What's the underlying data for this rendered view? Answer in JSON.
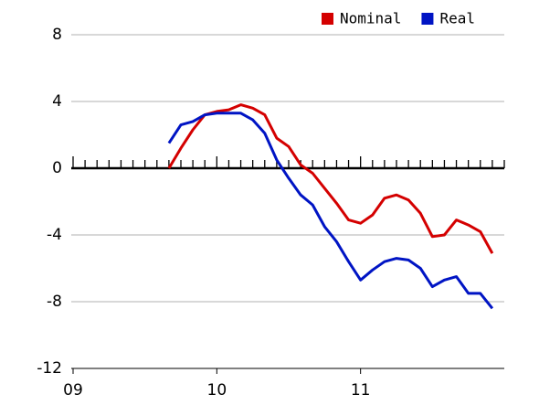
{
  "chart_data": {
    "type": "line",
    "categories": [
      "09",
      null,
      null,
      null,
      null,
      null,
      null,
      null,
      null,
      null,
      null,
      null,
      "10",
      null,
      null,
      null,
      null,
      null,
      null,
      null,
      null,
      null,
      null,
      null,
      "11",
      null,
      null,
      null,
      null,
      null,
      null,
      null,
      null,
      null,
      null,
      null
    ],
    "series": [
      {
        "name": "Nominal",
        "color": "#d40000",
        "values": [
          null,
          null,
          null,
          null,
          null,
          null,
          null,
          null,
          0,
          1.2,
          2.3,
          3.2,
          3.4,
          3.5,
          3.8,
          3.6,
          3.2,
          1.8,
          1.3,
          0.2,
          -0.3,
          -1.2,
          -2.1,
          -3.1,
          -3.3,
          -2.8,
          -1.8,
          -1.6,
          -1.9,
          -2.7,
          -4.1,
          -4.0,
          -3.1,
          -3.4,
          -3.8,
          -5.1
        ]
      },
      {
        "name": "Real",
        "color": "#0014c4",
        "values": [
          null,
          null,
          null,
          null,
          null,
          null,
          null,
          null,
          1.5,
          2.6,
          2.8,
          3.2,
          3.3,
          3.3,
          3.3,
          2.9,
          2.1,
          0.5,
          -0.6,
          -1.6,
          -2.2,
          -3.5,
          -4.4,
          -5.6,
          -6.7,
          -6.1,
          -5.6,
          -5.4,
          -5.5,
          -6.0,
          -7.1,
          -6.7,
          -6.5,
          -7.5,
          -7.5,
          -8.4
        ]
      }
    ],
    "ylim": [
      -12,
      8
    ],
    "yticks": [
      -12,
      -8,
      -4,
      0,
      4,
      8
    ],
    "grid": true,
    "legend": "top-right"
  }
}
